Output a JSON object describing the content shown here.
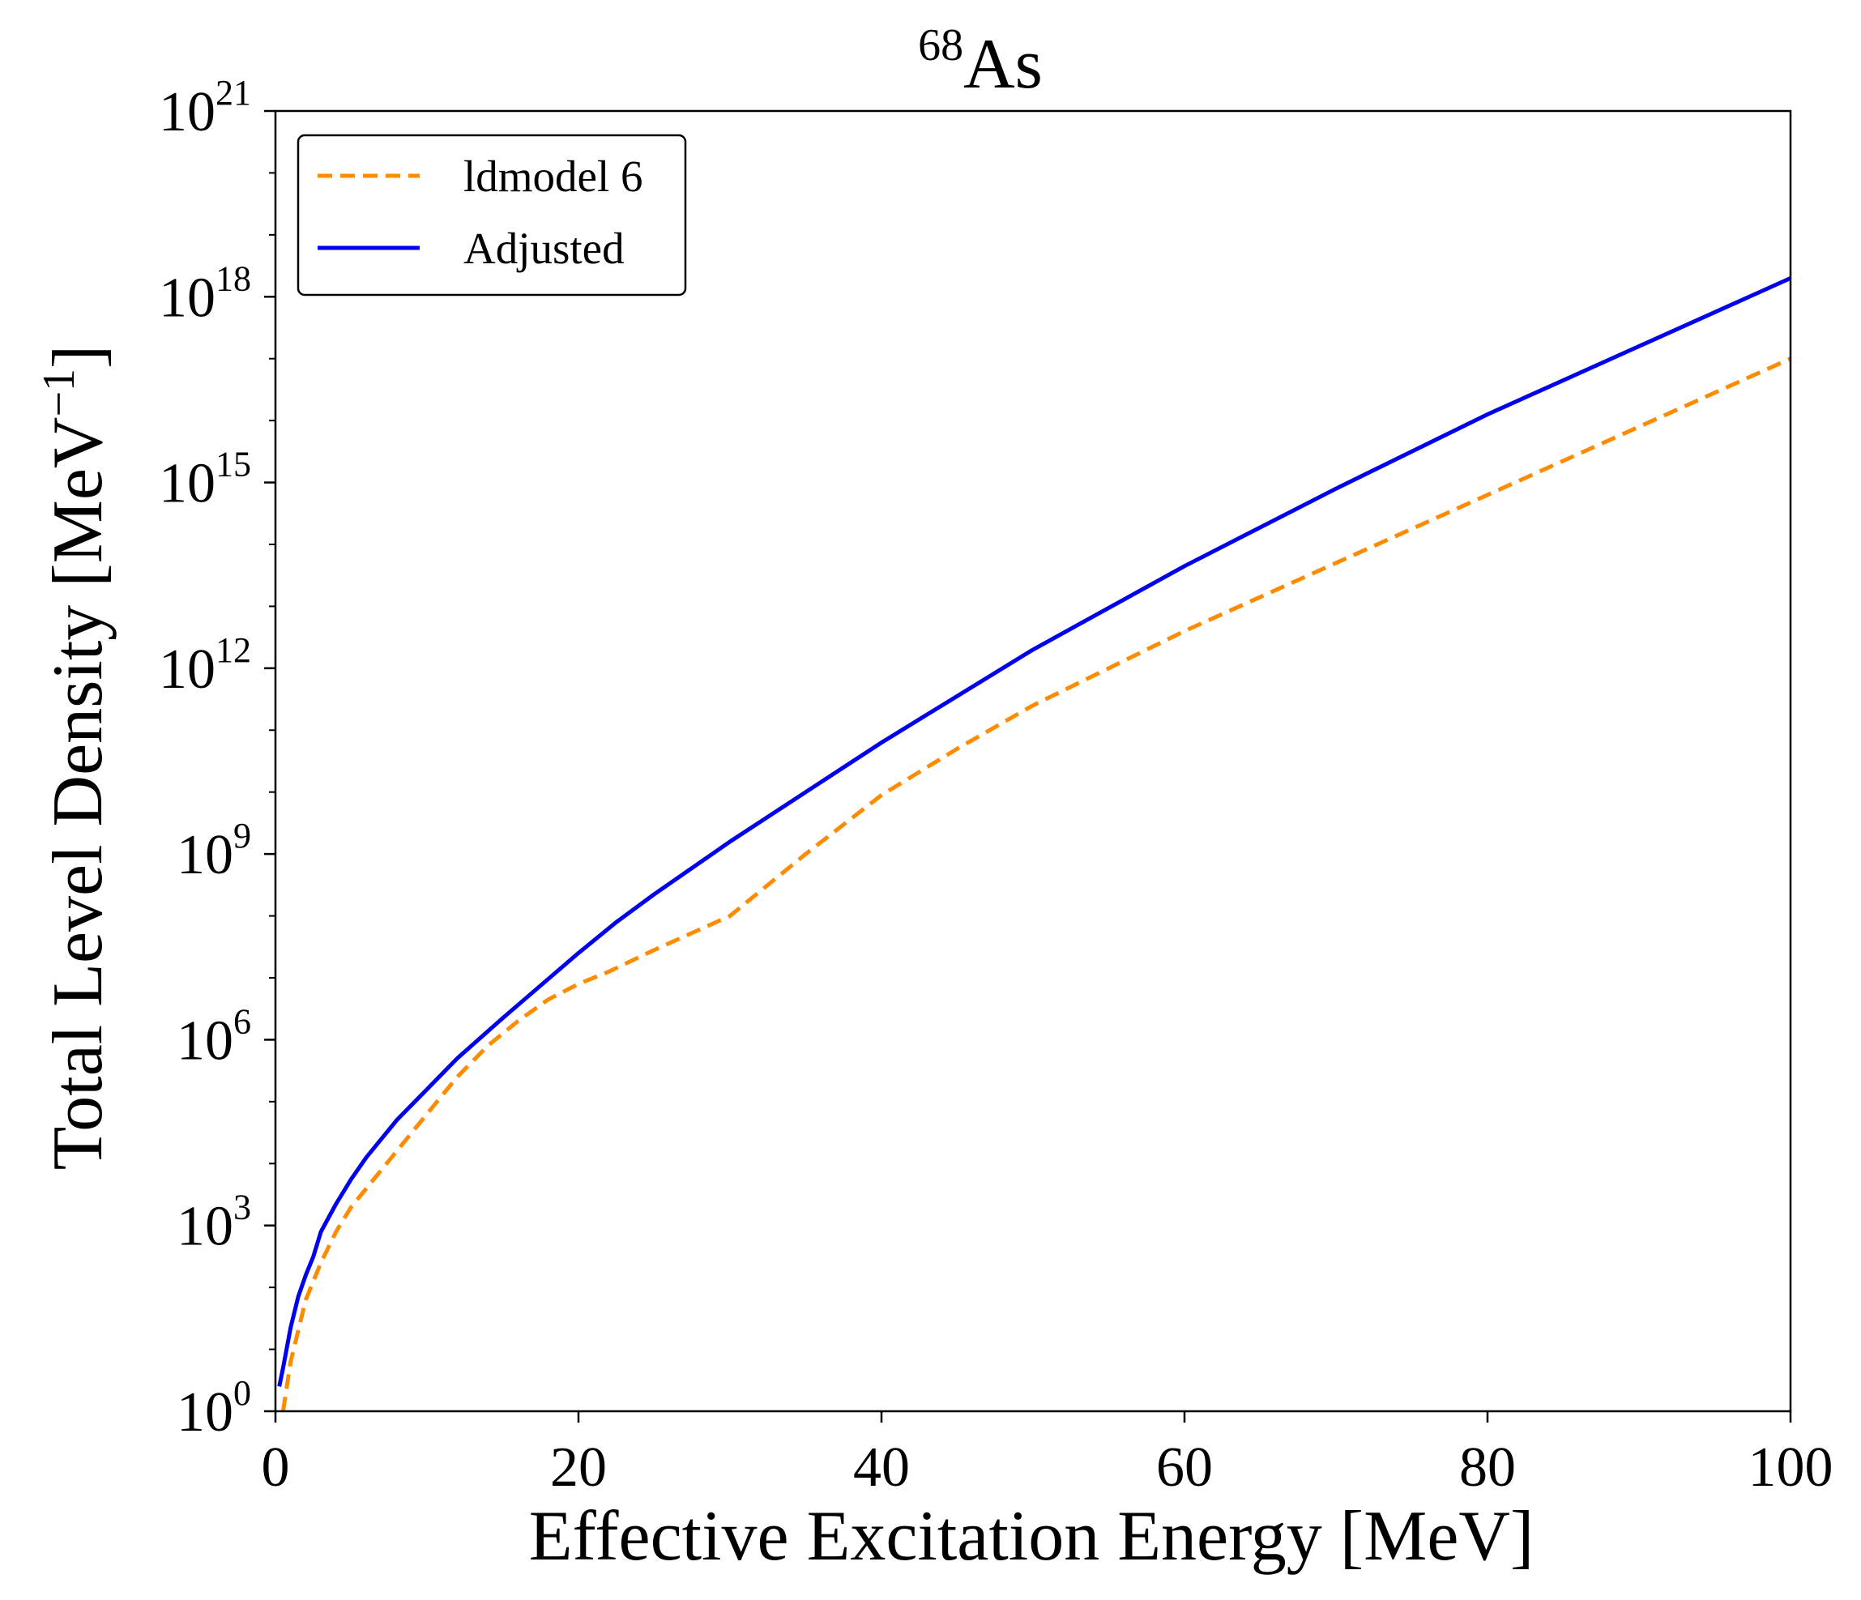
{
  "chart_data": {
    "type": "line",
    "title": {
      "superscript": "68",
      "base": "As"
    },
    "xlabel": "Effective Excitation Energy [MeV]",
    "ylabel": {
      "text": "Total Level Density [MeV",
      "superscript": "−1",
      "suffix": "]"
    },
    "xlim": [
      0,
      100
    ],
    "ylim_log10": [
      0,
      21
    ],
    "y_scale": "log",
    "x_ticks": [
      {
        "value": 0,
        "label": "0"
      },
      {
        "value": 20,
        "label": "20"
      },
      {
        "value": 40,
        "label": "40"
      },
      {
        "value": 60,
        "label": "60"
      },
      {
        "value": 80,
        "label": "80"
      },
      {
        "value": 100,
        "label": "100"
      }
    ],
    "y_ticks": [
      {
        "exponent": 0,
        "base": "10",
        "superscript": "0"
      },
      {
        "exponent": 3,
        "base": "10",
        "superscript": "3"
      },
      {
        "exponent": 6,
        "base": "10",
        "superscript": "6"
      },
      {
        "exponent": 9,
        "base": "10",
        "superscript": "9"
      },
      {
        "exponent": 12,
        "base": "10",
        "superscript": "12"
      },
      {
        "exponent": 15,
        "base": "10",
        "superscript": "15"
      },
      {
        "exponent": 18,
        "base": "10",
        "superscript": "18"
      },
      {
        "exponent": 21,
        "base": "10",
        "superscript": "21"
      }
    ],
    "legend_position": "top-left",
    "series": [
      {
        "name": "ldmodel 6",
        "color": "#ff8c00",
        "style": "dashed",
        "x": [
          0.5,
          1,
          2,
          3,
          4,
          5,
          6,
          7,
          8,
          10,
          12,
          14,
          16,
          18,
          20,
          22,
          25,
          30,
          35,
          40,
          45,
          50,
          60,
          70,
          80,
          90,
          100
        ],
        "log10_y": [
          0.0,
          0.8,
          1.8,
          2.4,
          2.9,
          3.3,
          3.6,
          3.9,
          4.2,
          4.8,
          5.4,
          5.9,
          6.3,
          6.65,
          6.9,
          7.1,
          7.45,
          8.0,
          9.0,
          9.95,
          10.7,
          11.4,
          12.6,
          13.7,
          14.8,
          15.9,
          17.0
        ]
      },
      {
        "name": "Adjusted",
        "color": "#0000ee",
        "style": "solid",
        "x": [
          0.25,
          0.5,
          1,
          1.5,
          2,
          2.5,
          3,
          4,
          5,
          6,
          7,
          8,
          10,
          12,
          15,
          20,
          22.5,
          25,
          30,
          35,
          40,
          45,
          50,
          60,
          70,
          80,
          90,
          100
        ],
        "log10_y": [
          0.4,
          0.7,
          1.35,
          1.85,
          2.2,
          2.5,
          2.9,
          3.35,
          3.75,
          4.1,
          4.4,
          4.7,
          5.2,
          5.7,
          6.35,
          7.4,
          7.9,
          8.35,
          9.2,
          10.0,
          10.8,
          11.55,
          12.3,
          13.65,
          14.9,
          16.1,
          17.2,
          18.3
        ]
      }
    ]
  }
}
